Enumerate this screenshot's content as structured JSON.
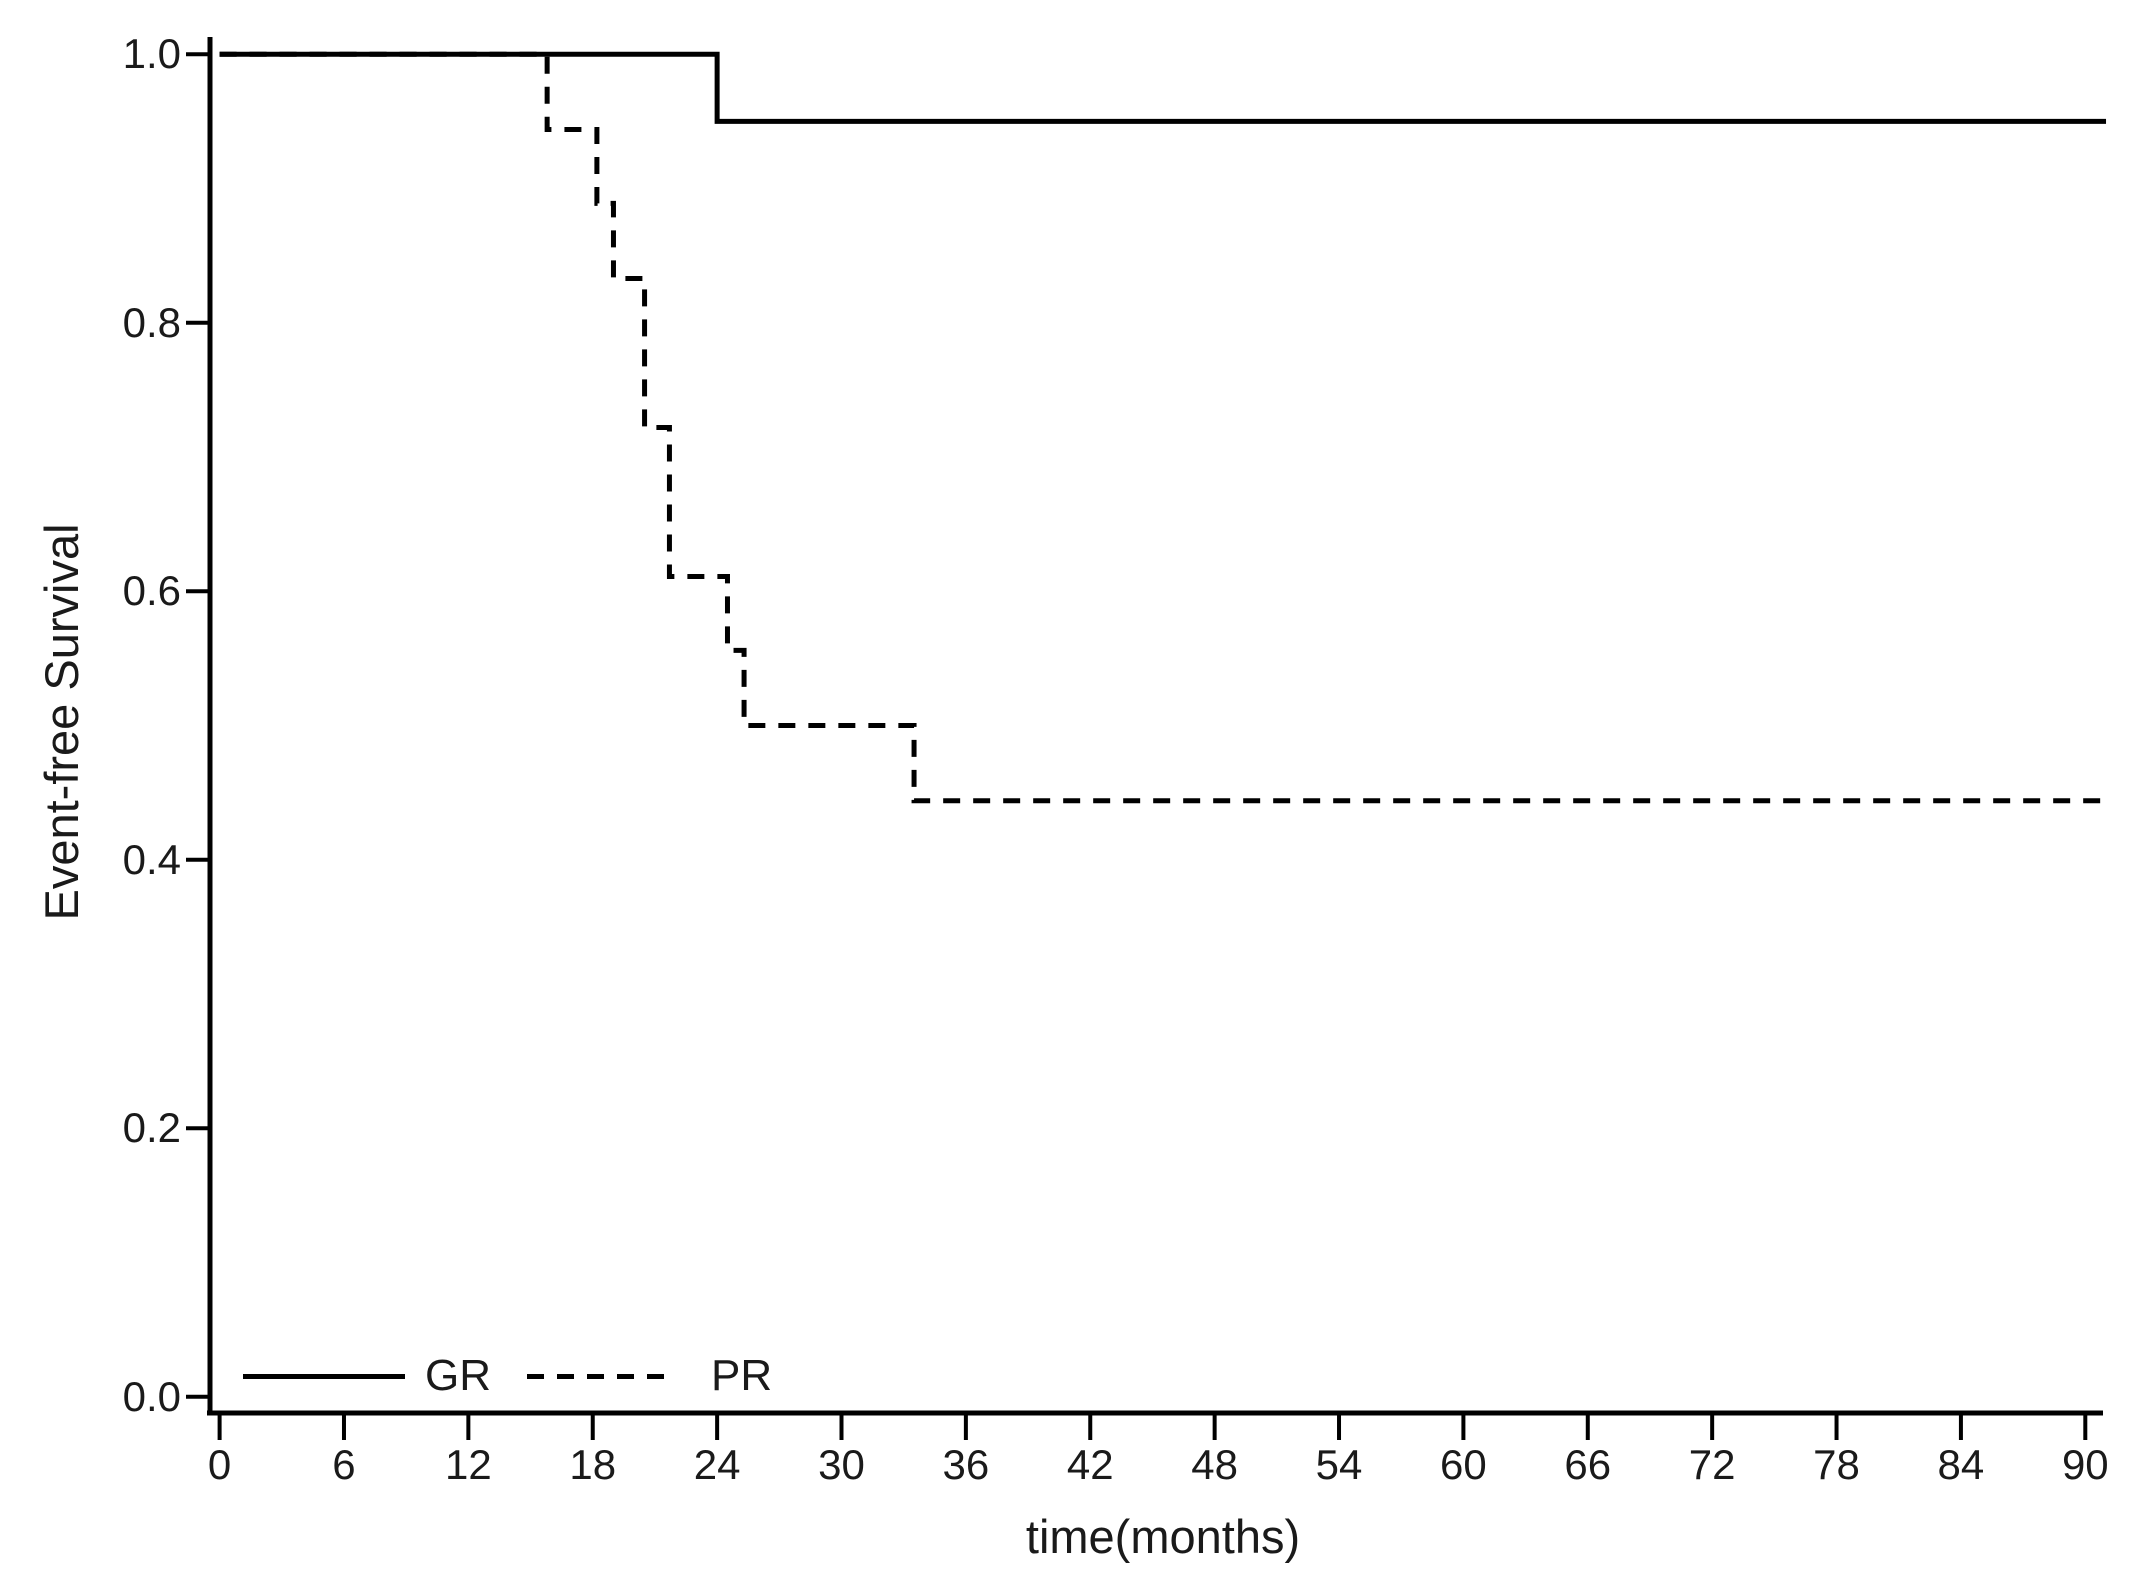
{
  "chart_data": {
    "type": "line",
    "subtype": "kaplan-meier-step",
    "title": "",
    "xlabel": "time(months)",
    "ylabel": "Event-free Survival",
    "xlim": [
      0,
      91
    ],
    "ylim": [
      0.0,
      1.0
    ],
    "x_ticks": [
      0,
      6,
      12,
      18,
      24,
      30,
      36,
      42,
      48,
      54,
      60,
      66,
      72,
      78,
      84,
      90
    ],
    "y_ticks": [
      1.0,
      0.8,
      0.6,
      0.4,
      0.2,
      0.0
    ],
    "y_tick_labels": [
      "1.0",
      "0.8",
      "0.6",
      "0.4",
      "0.2",
      "0.0"
    ],
    "grid": false,
    "legend_position": "inside-bottom-left",
    "line_color": "#000000",
    "series": [
      {
        "name": "GR",
        "line_style": "solid",
        "color": "#000000",
        "steps": [
          [
            0,
            1.0
          ],
          [
            24,
            0.95
          ]
        ],
        "end_x": 91
      },
      {
        "name": "PR",
        "line_style": "dashed",
        "color": "#000000",
        "steps": [
          [
            0,
            1.0
          ],
          [
            15.8,
            0.944
          ],
          [
            18.2,
            0.889
          ],
          [
            19.0,
            0.833
          ],
          [
            20.5,
            0.722
          ],
          [
            21.7,
            0.611
          ],
          [
            24.5,
            0.556
          ],
          [
            25.3,
            0.5
          ],
          [
            33.5,
            0.444
          ]
        ],
        "end_x": 91
      }
    ]
  }
}
